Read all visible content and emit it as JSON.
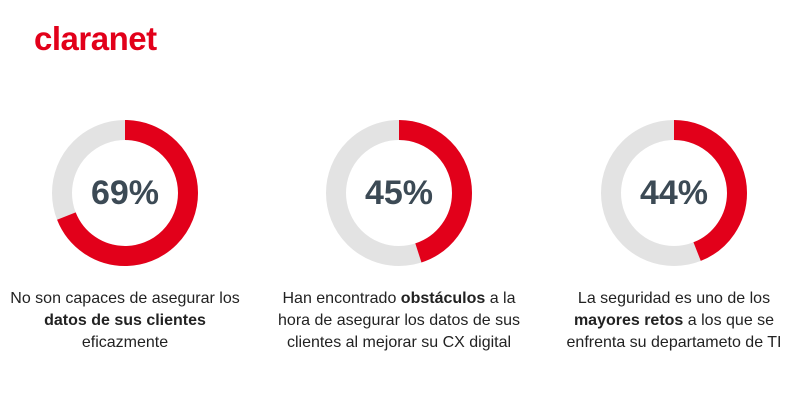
{
  "brand": {
    "logo_text": "claranet",
    "accent_color": "#e2001a",
    "track_color": "#e3e3e3"
  },
  "chart_data": {
    "type": "pie",
    "variant": "donut",
    "items": [
      {
        "value": 69,
        "label": "69%",
        "caption": [
          {
            "text": "No son capaces de asegurar los ",
            "bold": false
          },
          {
            "text": "datos de sus clientes",
            "bold": true
          },
          {
            "text": " eficazmente",
            "bold": false
          }
        ]
      },
      {
        "value": 45,
        "label": "45%",
        "caption": [
          {
            "text": "Han encontrado ",
            "bold": false
          },
          {
            "text": "obstáculos",
            "bold": true
          },
          {
            "text": " a la hora de asegurar los datos de sus clientes al mejorar su CX digital",
            "bold": false
          }
        ]
      },
      {
        "value": 44,
        "label": "44%",
        "caption": [
          {
            "text": "La seguridad es uno de los ",
            "bold": false
          },
          {
            "text": "mayores retos",
            "bold": true
          },
          {
            "text": " a los que se enfrenta su departameto de TI",
            "bold": false
          }
        ]
      }
    ]
  }
}
